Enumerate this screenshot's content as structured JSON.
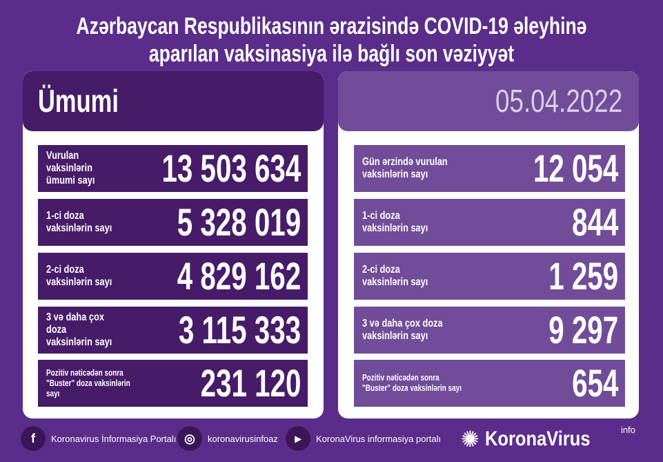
{
  "title": "Azərbaycan Respublikasının ərazisində COVID-19 əleyhinə aparılan vaksinasiya ilə bağlı son vəziyyət",
  "left": {
    "header": "Ümumi",
    "rows": [
      {
        "label": "Vurulan vaksinlərin\nümumi sayı",
        "value": "13 503 634"
      },
      {
        "label": "1-ci doza\nvaksinlərin sayı",
        "value": "5 328 019"
      },
      {
        "label": "2-ci doza\nvaksinlərin sayı",
        "value": "4 829 162"
      },
      {
        "label": "3 və daha çox doza\nvaksinlərin sayı",
        "value": "3 115 333"
      },
      {
        "label": "Pozitiv nəticədən sonra\n\"Buster\" doza vaksinlərin sayı",
        "value": "231 120"
      }
    ]
  },
  "right": {
    "header": "05.04.2022",
    "rows": [
      {
        "label": "Gün ərzində vurulan\nvaksinlərin sayı",
        "value": "12 054"
      },
      {
        "label": "1-ci doza\nvaksinlərin sayı",
        "value": "844"
      },
      {
        "label": "2-ci doza\nvaksinlərin sayı",
        "value": "1 259"
      },
      {
        "label": "3 və daha çox doza\nvaksinlərin sayı",
        "value": "9 297"
      },
      {
        "label": "Pozitiv nəticədən sonra\n\"Buster\" doza vaksinlərin sayı",
        "value": "654"
      }
    ]
  },
  "footer": {
    "facebook": "Koronavirus İnformasiya Portalı",
    "instagram": "koronavirusinfoaz",
    "youtube": "KoronaVirus informasiya portalı",
    "logo": "KoronaVirus",
    "logo_sup": "info"
  },
  "colors": {
    "background": "#5b2d8a",
    "left_rows": "#461c69",
    "right_rows": "#714c98"
  }
}
